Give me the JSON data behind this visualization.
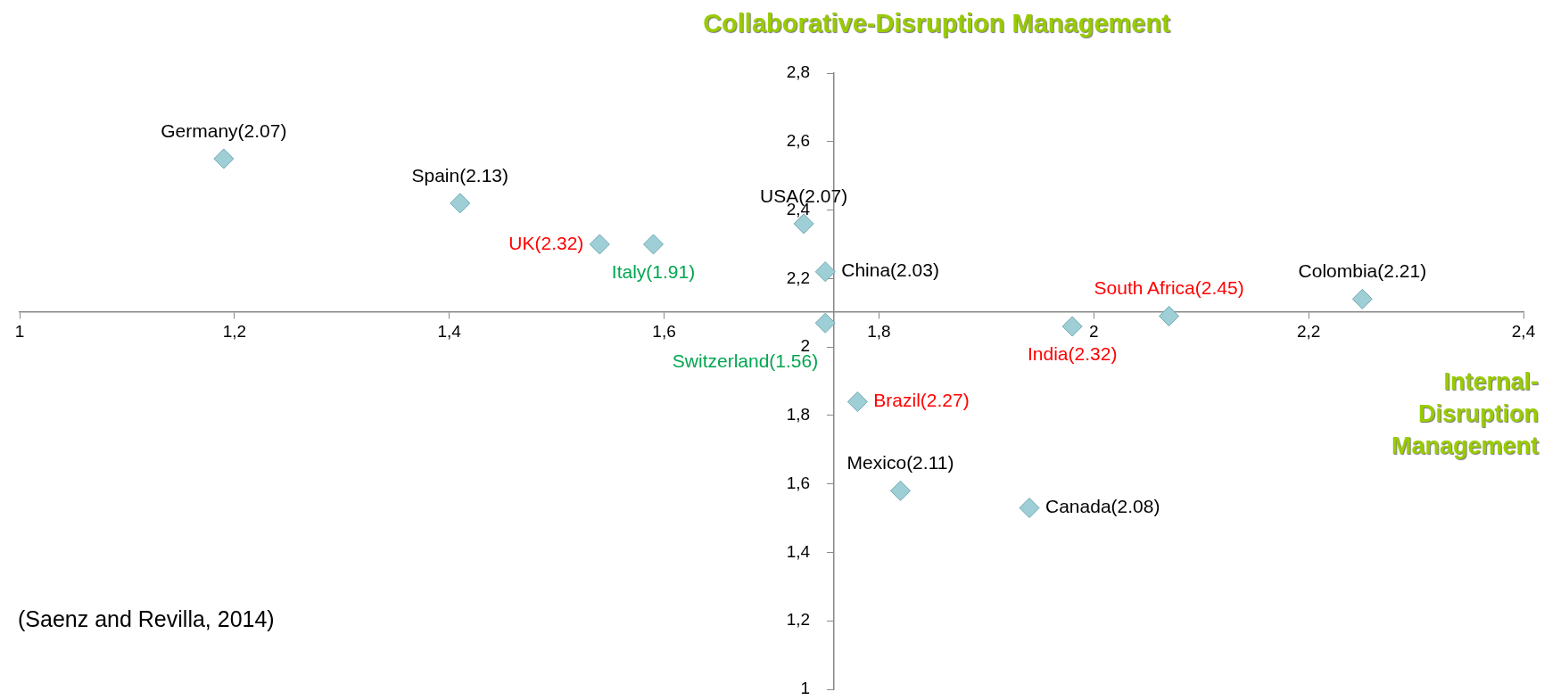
{
  "chart_data": {
    "type": "scatter",
    "xlabel": "Internal-Disruption Management",
    "ylabel": "Collaborative-Disruption Management",
    "xlim": [
      1,
      2.4
    ],
    "xticks": [
      1,
      {
        "value": 1.2,
        "label": "1,2"
      },
      {
        "value": 1.4,
        "label": "1,4"
      },
      {
        "value": 1.6,
        "label": "1,6"
      },
      {
        "value": 1.8,
        "label": "1,8"
      },
      2,
      {
        "value": 2.2,
        "label": "2,2"
      },
      {
        "value": 2.4,
        "label": "2,4"
      }
    ],
    "ylim": [
      1,
      2.8
    ],
    "yticks": [
      1,
      {
        "value": 1.2,
        "label": "1,2"
      },
      {
        "value": 1.4,
        "label": "1,4"
      },
      {
        "value": 1.6,
        "label": "1,6"
      },
      {
        "value": 1.8,
        "label": "1,8"
      },
      2,
      {
        "value": 2.2,
        "label": "2,2"
      },
      {
        "value": 2.4,
        "label": "2,4"
      },
      {
        "value": 2.6,
        "label": "2,6"
      },
      {
        "value": 2.8,
        "label": "2,8"
      }
    ],
    "marker": "diamond",
    "legend": false,
    "series": [
      {
        "color": "#9fcfd6",
        "x": [
          1.19,
          1.41,
          1.73,
          1.75,
          1.82,
          1.94,
          2.25
        ],
        "values": [
          2.55,
          2.42,
          2.36,
          2.22,
          1.58,
          1.53,
          2.14
        ],
        "value_labels": [
          "Germany(2.07)",
          "Spain(2.13)",
          "USA(2.07)",
          "China(2.03)",
          "Mexico(2.11)",
          "Canada(2.08)",
          "Colombia(2.21)"
        ]
      },
      {
        "color": "#9fcfd6",
        "x": [
          1.54,
          2.07,
          1.98,
          1.78
        ],
        "values": [
          2.3,
          2.09,
          2.06,
          1.84
        ],
        "value_labels": [
          "UK(2.32)",
          "South Africa(2.45)",
          "India(2.32)",
          "Brazil(2.27)"
        ]
      },
      {
        "color": "#9fcfd6",
        "x": [
          1.59,
          1.75
        ],
        "values": [
          2.3,
          2.07
        ],
        "value_labels": [
          "Italy(1.91)",
          "Switzerland(1.56)"
        ]
      }
    ],
    "annotations": [
      "(Saenz and Revilla, 2014)"
    ]
  }
}
